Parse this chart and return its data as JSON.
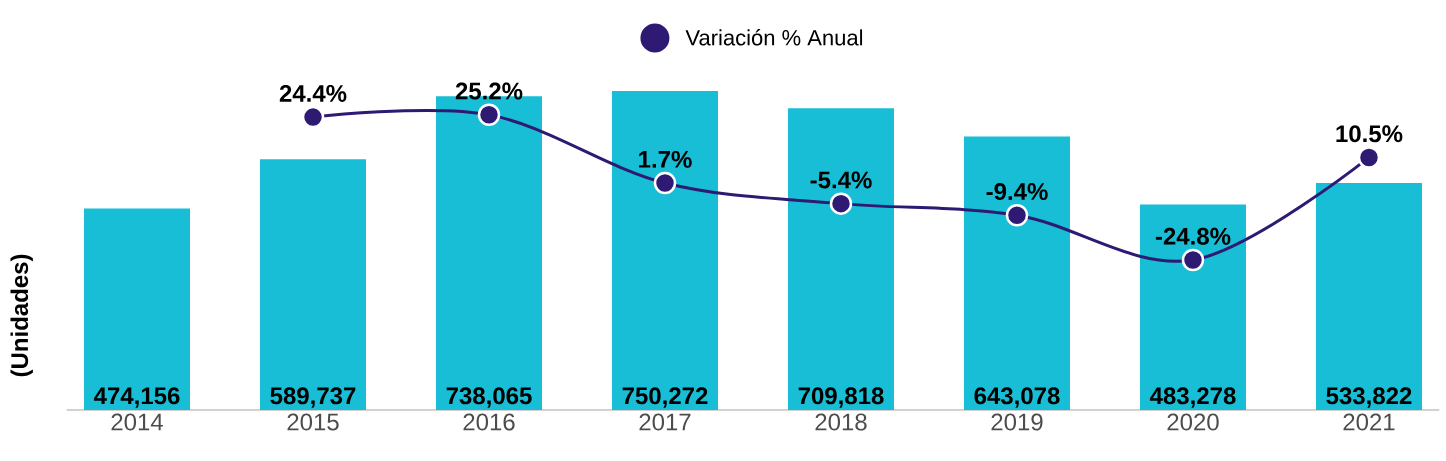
{
  "chart_data": {
    "type": "bar",
    "ylabel": "(Unidades)",
    "categories": [
      "2014",
      "2015",
      "2016",
      "2017",
      "2018",
      "2019",
      "2020",
      "2021"
    ],
    "legend": "top",
    "tick_labels": "x",
    "marker": "circle",
    "series": [
      {
        "color": "#17bed6",
        "values": [
          474156,
          589737,
          738065,
          750272,
          709818,
          643078,
          483278,
          533822
        ],
        "value_labels": [
          "474,156",
          "589,737",
          "738,065",
          "750,272",
          "709,818",
          "643,078",
          "483,278",
          "533,822"
        ]
      },
      {
        "type": "line",
        "name": "Variación % Anual",
        "axis": "y2",
        "color": "#2e1a72",
        "values": [
          null,
          24.4,
          25.2,
          1.7,
          -5.4,
          -9.4,
          -24.8,
          10.5
        ],
        "value_labels": [
          null,
          "24.4%",
          "25.2%",
          "1.7%",
          "-5.4%",
          "-9.4%",
          "-24.8%",
          "10.5%"
        ]
      }
    ]
  }
}
